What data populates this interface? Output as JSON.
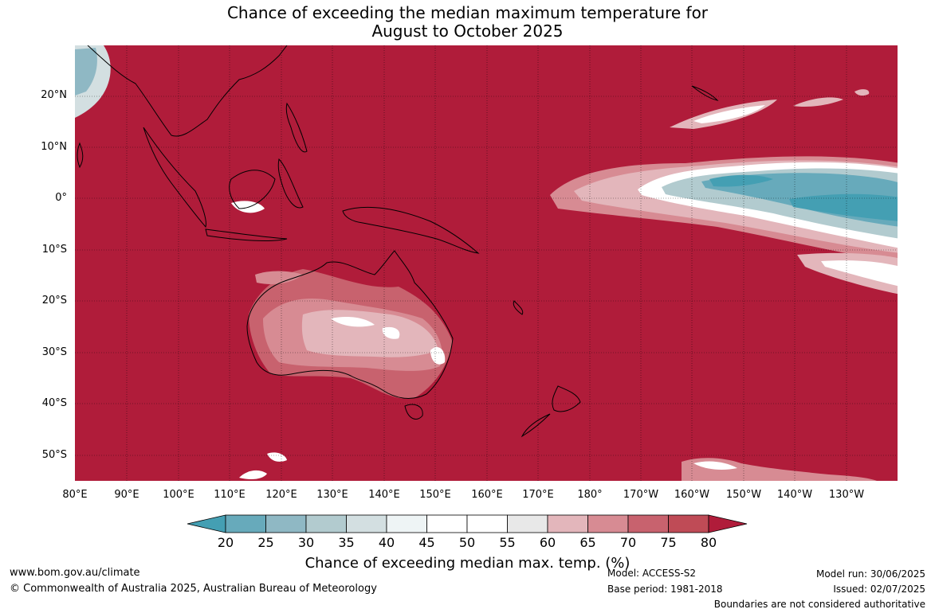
{
  "title": {
    "line1": "Chance of exceeding the median maximum temperature for",
    "line2": "August to October 2025"
  },
  "map": {
    "lat_labels": [
      "20°N",
      "10°N",
      "0°",
      "10°S",
      "20°S",
      "30°S",
      "40°S",
      "50°S"
    ],
    "lon_labels": [
      "80°E",
      "90°E",
      "100°E",
      "110°E",
      "120°E",
      "130°E",
      "140°E",
      "150°E",
      "160°E",
      "170°E",
      "180°",
      "170°W",
      "160°W",
      "150°W",
      "140°W",
      "130°W"
    ],
    "background_color": "#b01c3a",
    "grid": "dotted"
  },
  "colorbar": {
    "ticks": [
      "20",
      "25",
      "30",
      "35",
      "40",
      "45",
      "50",
      "55",
      "60",
      "65",
      "70",
      "75",
      "80"
    ],
    "colors": [
      "#449fb3",
      "#67aabb",
      "#8fb8c4",
      "#b2cbcf",
      "#d3dfe1",
      "#eef4f5",
      "#ffffff",
      "#ffffff",
      "#e8e8e8",
      "#e3b6bb",
      "#d78b93",
      "#c8626e",
      "#bf4b56",
      "#b01c3a"
    ],
    "label": "Chance of exceeding median max. temp. (%)"
  },
  "footer": {
    "website": "www.bom.gov.au/climate",
    "copyright": "© Commonwealth of Australia 2025, Australian Bureau of Meteorology",
    "model": "Model: ACCESS-S2",
    "base_period": "Base period: 1981-2018",
    "model_run": "Model run: 30/06/2025",
    "issued": "Issued: 02/07/2025",
    "disclaimer": "Boundaries are not considered authoritative"
  }
}
